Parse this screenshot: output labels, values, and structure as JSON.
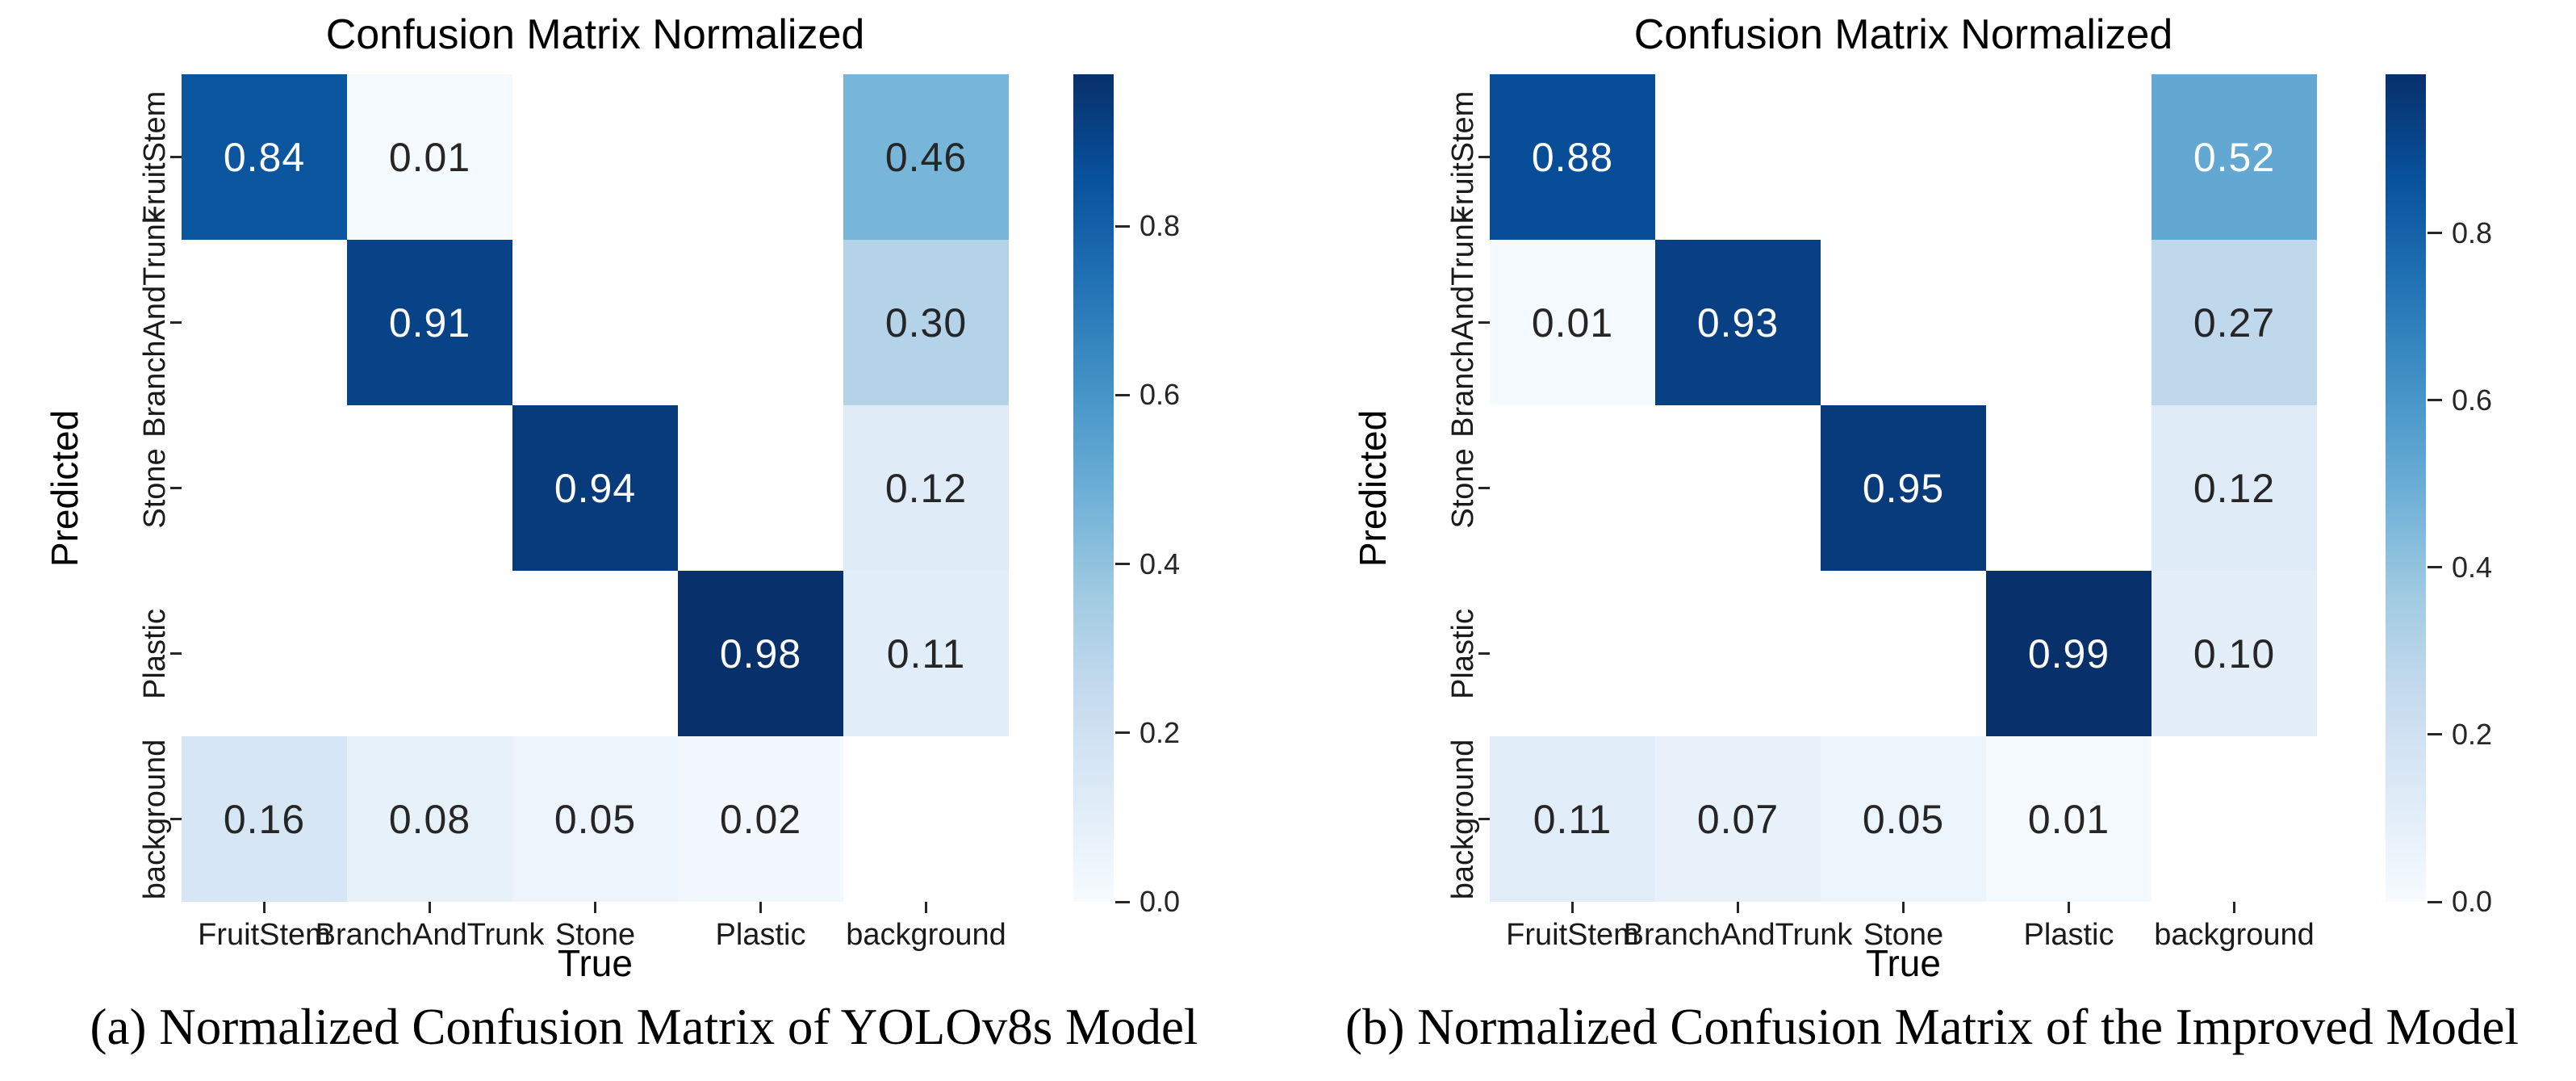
{
  "figure": {
    "background": "#ffffff",
    "title_color": "#000000",
    "tick_label_color": "#1a1a1a",
    "annot_dark": "#262626",
    "annot_light": "#ffffff",
    "colormap": {
      "name": "Blues",
      "anchors_low_to_high": [
        "#F7FBFF",
        "#DEEBF7",
        "#C6DBEF",
        "#9ECAE1",
        "#6BAED6",
        "#4292C6",
        "#2171B5",
        "#08519C",
        "#08306B"
      ]
    }
  },
  "panels": [
    {
      "id": "a",
      "title": "Confusion Matrix Normalized",
      "xlabel": "True",
      "ylabel": "Predicted",
      "caption": "(a) Normalized Confusion Matrix of YOLOv8s Model"
    },
    {
      "id": "b",
      "title": "Confusion Matrix Normalized",
      "xlabel": "True",
      "ylabel": "Predicted",
      "caption": "(b) Normalized Confusion Matrix of the Improved Model"
    }
  ],
  "chart_data": [
    {
      "type": "heatmap",
      "title": "Confusion Matrix Normalized",
      "caption": "(a) Normalized Confusion Matrix of YOLOv8s Model",
      "xlabel": "True",
      "ylabel": "Predicted",
      "x_categories": [
        "FruitStem",
        "BranchAndTrunk",
        "Stone",
        "Plastic",
        "background"
      ],
      "y_categories": [
        "FruitStem",
        "BranchAndTrunk",
        "Stone",
        "Plastic",
        "background"
      ],
      "values": [
        [
          0.84,
          0.01,
          null,
          null,
          0.46
        ],
        [
          null,
          0.91,
          null,
          null,
          0.3
        ],
        [
          null,
          null,
          0.94,
          null,
          0.12
        ],
        [
          null,
          null,
          null,
          0.98,
          0.11
        ],
        [
          0.16,
          0.08,
          0.05,
          0.02,
          null
        ]
      ],
      "vmin": 0.0,
      "vmax": 0.98,
      "colormap": "Blues",
      "colorbar_ticks": [
        0.8,
        0.6,
        0.4,
        0.2,
        0.0
      ],
      "grid": false,
      "legend": "colorbar-right"
    },
    {
      "type": "heatmap",
      "title": "Confusion Matrix Normalized",
      "caption": "(b) Normalized Confusion Matrix of the Improved Model",
      "xlabel": "True",
      "ylabel": "Predicted",
      "x_categories": [
        "FruitStem",
        "BranchAndTrunk",
        "Stone",
        "Plastic",
        "background"
      ],
      "y_categories": [
        "FruitStem",
        "BranchAndTrunk",
        "Stone",
        "Plastic",
        "background"
      ],
      "values": [
        [
          0.88,
          null,
          null,
          null,
          0.52
        ],
        [
          0.01,
          0.93,
          null,
          null,
          0.27
        ],
        [
          null,
          null,
          0.95,
          null,
          0.12
        ],
        [
          null,
          null,
          null,
          0.99,
          0.1
        ],
        [
          0.11,
          0.07,
          0.05,
          0.01,
          null
        ]
      ],
      "vmin": 0.0,
      "vmax": 0.99,
      "colormap": "Blues",
      "colorbar_ticks": [
        0.8,
        0.6,
        0.4,
        0.2,
        0.0
      ],
      "grid": false,
      "legend": "colorbar-right"
    }
  ]
}
